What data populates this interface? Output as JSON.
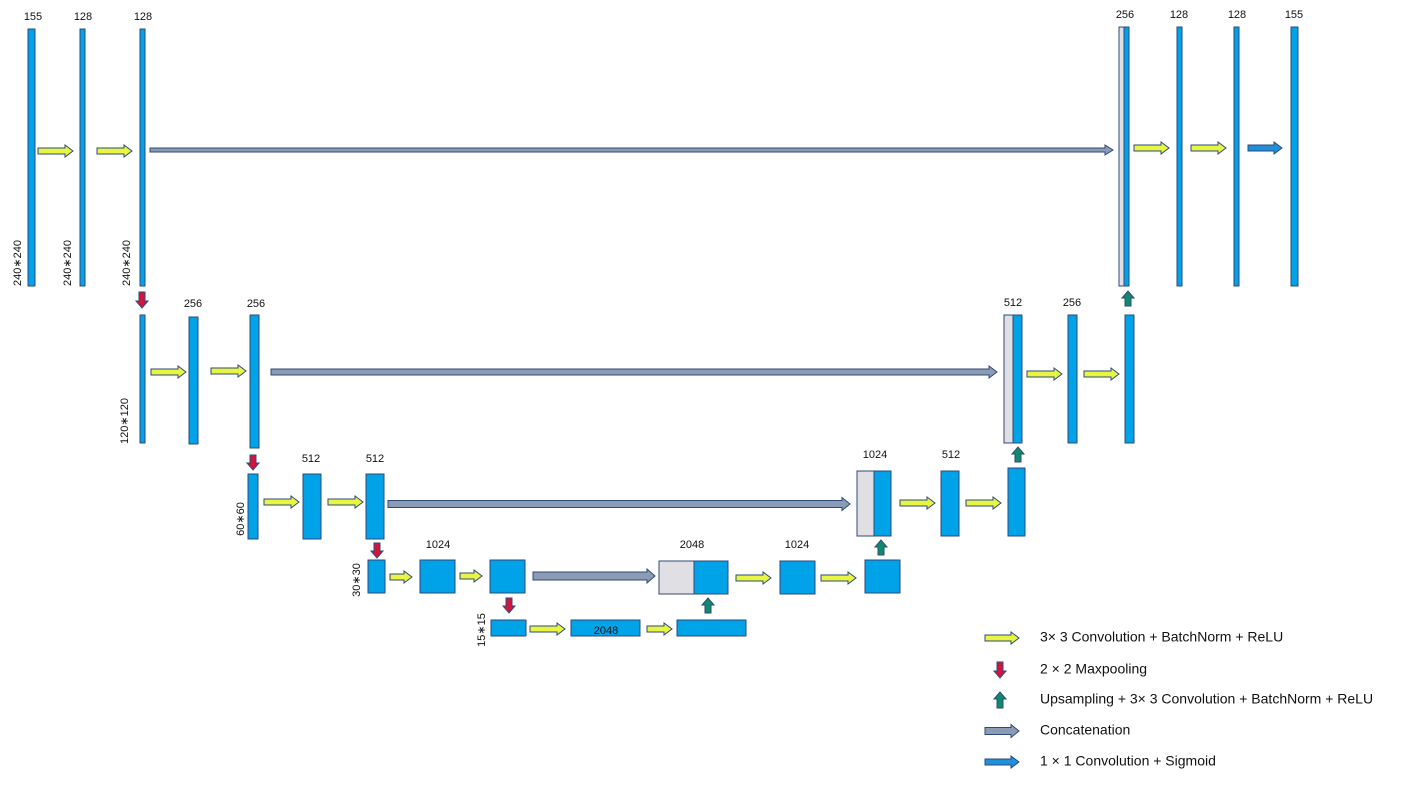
{
  "channel_labels": [
    "155",
    "128",
    "128",
    "256",
    "128",
    "128",
    "155",
    "256",
    "256",
    "512",
    "256",
    "512",
    "512",
    "1024",
    "512",
    "1024",
    "2048",
    "1024",
    "2048"
  ],
  "size_labels": [
    "240∗240",
    "240∗240",
    "240∗240",
    "120∗120",
    "60∗60",
    "30∗30",
    "15∗15"
  ],
  "legend": [
    "3× 3 Convolution + BatchNorm + ReLU",
    "2 × 2 Maxpooling",
    "Upsampling + 3× 3  Convolution + BatchNorm + ReLU",
    "Concatenation",
    "1 × 1 Convolution + Sigmoid"
  ]
}
